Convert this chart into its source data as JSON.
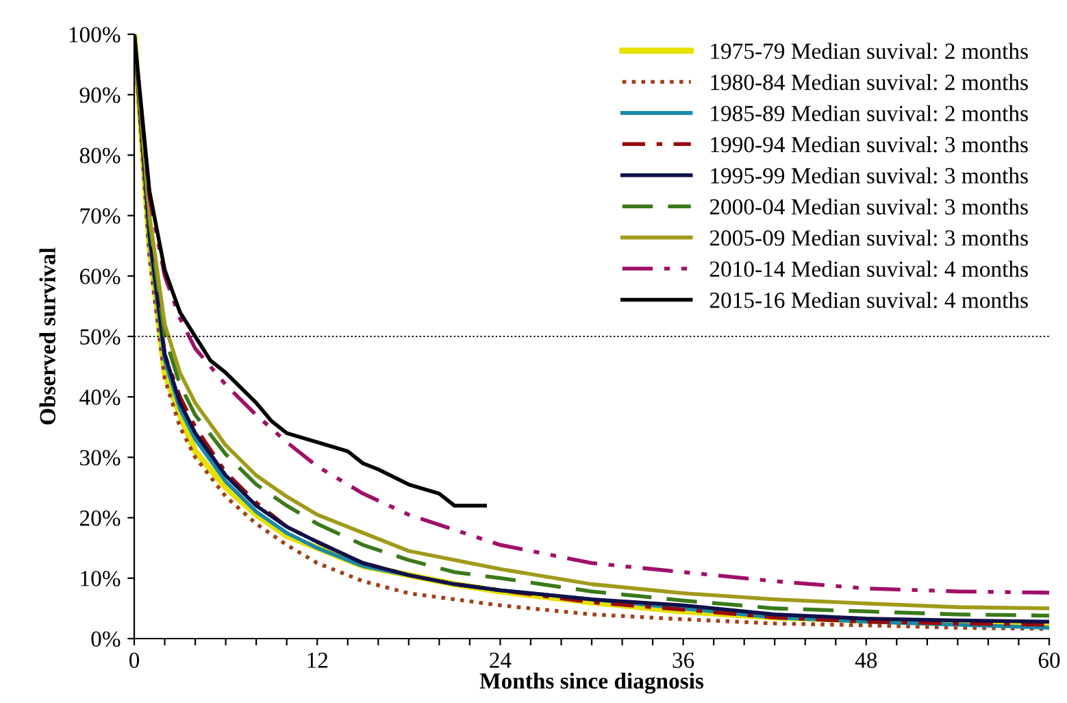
{
  "chart_data": {
    "type": "line",
    "xlabel": "Months since diagnosis",
    "ylabel": "Observed survival",
    "x": [
      0,
      1,
      2,
      3,
      4,
      6,
      8,
      10,
      12,
      15,
      18,
      21,
      24,
      30,
      36,
      42,
      48,
      54,
      60
    ],
    "xlim": [
      0,
      60
    ],
    "xticks": [
      0,
      {
        "value": 2,
        "label": null
      },
      {
        "value": 4,
        "label": null
      },
      {
        "value": 6,
        "label": null
      },
      {
        "value": 8,
        "label": null
      },
      {
        "value": 10,
        "label": null
      },
      12,
      {
        "value": 14,
        "label": null
      },
      {
        "value": 16,
        "label": null
      },
      {
        "value": 18,
        "label": null
      },
      {
        "value": 20,
        "label": null
      },
      {
        "value": 22,
        "label": null
      },
      24,
      {
        "value": 26,
        "label": null
      },
      {
        "value": 28,
        "label": null
      },
      {
        "value": 30,
        "label": null
      },
      {
        "value": 32,
        "label": null
      },
      {
        "value": 34,
        "label": null
      },
      36,
      {
        "value": 38,
        "label": null
      },
      {
        "value": 40,
        "label": null
      },
      {
        "value": 42,
        "label": null
      },
      {
        "value": 44,
        "label": null
      },
      {
        "value": 46,
        "label": null
      },
      48,
      {
        "value": 50,
        "label": null
      },
      {
        "value": 52,
        "label": null
      },
      {
        "value": 54,
        "label": null
      },
      {
        "value": 56,
        "label": null
      },
      {
        "value": 58,
        "label": null
      },
      60
    ],
    "ylim": [
      0,
      100
    ],
    "yticks": [
      {
        "value": 0,
        "label": "0%"
      },
      {
        "value": 10,
        "label": "10%"
      },
      {
        "value": 20,
        "label": "20%"
      },
      {
        "value": 30,
        "label": "30%"
      },
      {
        "value": 40,
        "label": "40%"
      },
      {
        "value": 50,
        "label": "50%"
      },
      {
        "value": 60,
        "label": "60%"
      },
      {
        "value": 70,
        "label": "70%"
      },
      {
        "value": 80,
        "label": "80%"
      },
      {
        "value": 90,
        "label": "90%"
      },
      {
        "value": 100,
        "label": "100%"
      }
    ],
    "grid": false,
    "legend": "top right",
    "ref_lines": [
      {
        "axis": "y",
        "value": 50,
        "color": "#000000",
        "line_style": "dotted"
      }
    ],
    "series": [
      {
        "name": "1975-79 Median suvival: 2 months",
        "color": "#e8e000",
        "line_style": "solid",
        "values": [
          100,
          65,
          44,
          37,
          31,
          25,
          20.5,
          17,
          15,
          12,
          10.5,
          9,
          7.8,
          6,
          4.5,
          3.5,
          3,
          2.5,
          2.3
        ]
      },
      {
        "name": "1980-84 Median suvival: 2 months",
        "color": "#a0401a",
        "line_style": "dotted",
        "values": [
          100,
          63,
          43,
          35,
          30,
          23.5,
          19,
          15.5,
          12.5,
          9.5,
          7.5,
          6.5,
          5.5,
          4,
          3.2,
          2.5,
          2.2,
          1.8,
          1.6
        ]
      },
      {
        "name": "1985-89 Median suvival: 2 months",
        "color": "#1a8aaa",
        "line_style": "solid",
        "values": [
          100,
          66,
          46,
          38,
          33,
          26,
          21,
          17.5,
          15,
          12,
          10.5,
          9,
          8,
          6.5,
          5,
          3.5,
          2.8,
          2.3,
          1.8
        ]
      },
      {
        "name": "1990-94 Median suvival: 3 months",
        "color": "#9a0a0a",
        "line_style": "dashdot",
        "values": [
          100,
          67,
          47,
          40,
          35,
          27.5,
          22.5,
          18.5,
          16,
          12.5,
          10.5,
          9,
          8,
          6,
          4.8,
          3.5,
          2.8,
          2.5,
          2.3
        ]
      },
      {
        "name": "1995-99 Median suvival: 3 months",
        "color": "#10104a",
        "line_style": "solid",
        "values": [
          100,
          67,
          47,
          39,
          34,
          27,
          22,
          18.5,
          16,
          12.5,
          10.5,
          9,
          8,
          6.5,
          5.5,
          4,
          3.3,
          3,
          2.8
        ]
      },
      {
        "name": "2000-04 Median suvival: 3 months",
        "color": "#3a7a1a",
        "line_style": "dashed",
        "values": [
          100,
          69,
          50,
          42,
          37,
          30.5,
          25.5,
          22,
          19,
          15.5,
          13,
          11,
          10,
          7.8,
          6.3,
          5,
          4.5,
          4,
          3.8
        ]
      },
      {
        "name": "2005-09 Median suvival: 3 months",
        "color": "#a09a1a",
        "line_style": "solid",
        "values": [
          100,
          70,
          52,
          44,
          39,
          32,
          27,
          23.5,
          20.5,
          17.5,
          14.5,
          13,
          11.5,
          9,
          7.5,
          6.5,
          5.8,
          5.2,
          5
        ]
      },
      {
        "name": "2010-14 Median suvival: 4 months",
        "color": "#a0106a",
        "line_style": "dashdotdot",
        "values": [
          100,
          73,
          60,
          53,
          48,
          42,
          37,
          32.5,
          28.5,
          24,
          20.5,
          18,
          15.5,
          12.5,
          11,
          9.5,
          8.3,
          7.8,
          7.6
        ]
      },
      {
        "name": "2015-16 Median suvival: 4 months",
        "color": "#000000",
        "line_style": "solid",
        "x": [
          0,
          1,
          2,
          3,
          4,
          5,
          6,
          7,
          8,
          9,
          10,
          12,
          14,
          15,
          16,
          18,
          20,
          21,
          23
        ],
        "values": [
          100,
          74,
          61,
          54,
          50,
          46,
          44,
          41.5,
          39,
          36,
          34,
          32.5,
          31,
          29,
          28,
          25.5,
          24,
          22,
          22
        ]
      }
    ]
  }
}
